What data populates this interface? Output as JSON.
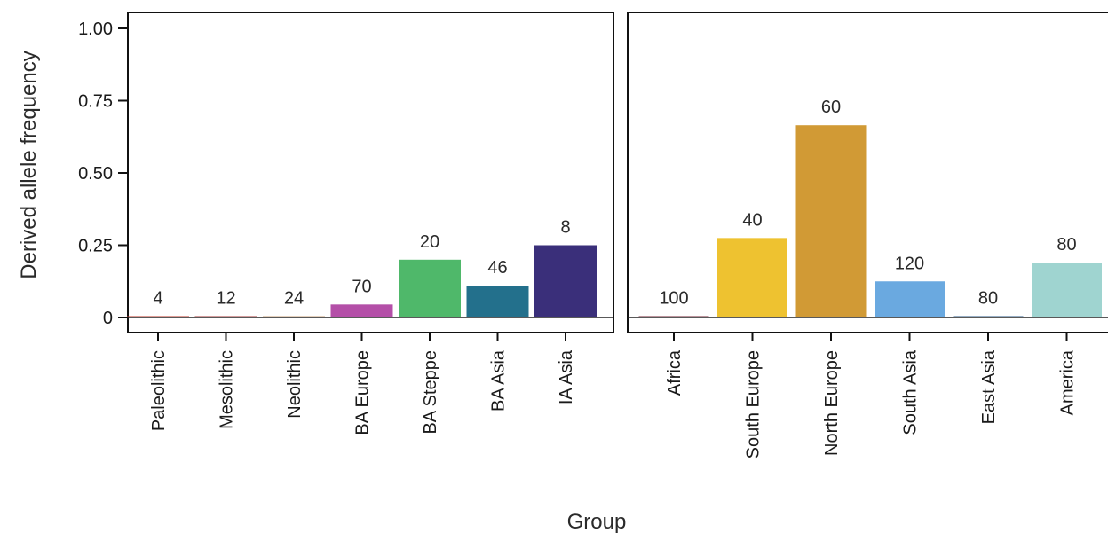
{
  "chart_data": {
    "type": "bar",
    "xlabel": "Group",
    "ylabel": "Derived allele frequency",
    "ylim": [
      0,
      1
    ],
    "yticks": [
      {
        "value": 0,
        "label": "0"
      },
      {
        "value": 0.25,
        "label": "0.25"
      },
      {
        "value": 0.5,
        "label": "0.50"
      },
      {
        "value": 0.75,
        "label": "0.75"
      },
      {
        "value": 1.0,
        "label": "1.00"
      }
    ],
    "grid": false,
    "panels": [
      {
        "categories": [
          "Paleolithic",
          "Mesolithic",
          "Neolithic",
          "BA Europe",
          "BA Steppe",
          "BA Asia",
          "IA Asia"
        ],
        "values": [
          0.003,
          0.003,
          0.003,
          0.045,
          0.2,
          0.11,
          0.25
        ],
        "labels": [
          "4",
          "12",
          "24",
          "70",
          "20",
          "46",
          "8"
        ],
        "colors": [
          "#c0392b",
          "#a83a3a",
          "#c8a07a",
          "#b44fa8",
          "#4fb86a",
          "#23708c",
          "#3a2f7a"
        ]
      },
      {
        "categories": [
          "Africa",
          "South Europe",
          "North Europe",
          "South Asia",
          "East Asia",
          "America"
        ],
        "values": [
          0.003,
          0.275,
          0.665,
          0.125,
          0.003,
          0.19
        ],
        "labels": [
          "100",
          "40",
          "60",
          "120",
          "80",
          "80"
        ],
        "colors": [
          "#7a2a3a",
          "#eec230",
          "#d19a35",
          "#6aa9e0",
          "#2f5d8a",
          "#9fd4d0"
        ]
      }
    ]
  }
}
